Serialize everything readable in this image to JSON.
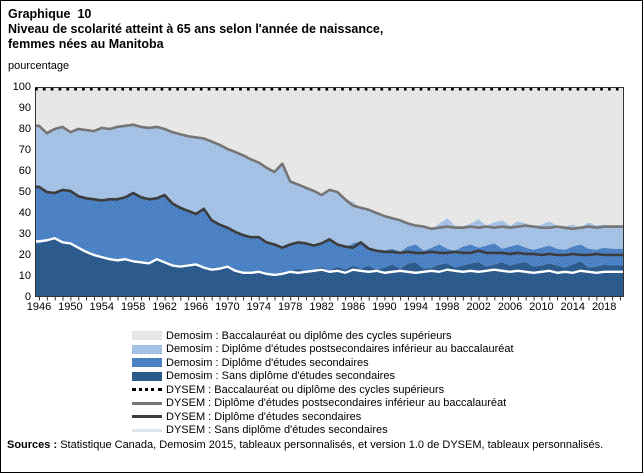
{
  "header": {
    "chart_number": "Graphique  10",
    "title_line_2": "Niveau de scolarité atteint à 65 ans selon l'année de naissance,",
    "title_line_3": "femmes nées au Manitoba",
    "unit_label": "pourcentage"
  },
  "colors": {
    "area_bacc": "#e9e9e8",
    "area_bacc_dot": "#d7d7d5",
    "area_postsec": "#a7c4e7",
    "area_postsec_dot": "#8fb1da",
    "area_sec": "#4e85c8",
    "area_sec_dot": "#3a6ca9",
    "area_sans": "#2e5d90",
    "area_sans_dot": "#224a77",
    "line_dysem_bacc": "#000000",
    "line_dysem_postsec": "#757575",
    "line_dysem_sec": "#3c3c3c",
    "line_dysem_sans": "#ffffff",
    "legend_sans_swatch": "#dfe7ee",
    "plot_border": "#333333"
  },
  "chart_data": {
    "type": "area",
    "stacked_percent": true,
    "title": "Niveau de scolarité atteint à 65 ans selon l'année de naissance, femmes nées au Manitoba",
    "ylabel": "pourcentage",
    "ylim": [
      0,
      100
    ],
    "y_ticks": [
      0,
      10,
      20,
      30,
      40,
      50,
      60,
      70,
      80,
      90,
      100
    ],
    "x_tick_label_years": [
      1946,
      1950,
      1954,
      1958,
      1962,
      1966,
      1970,
      1974,
      1978,
      1982,
      1986,
      1990,
      1994,
      1998,
      2002,
      2006,
      2010,
      2014,
      2018
    ],
    "years": [
      1946,
      1947,
      1948,
      1949,
      1950,
      1951,
      1952,
      1953,
      1954,
      1955,
      1956,
      1957,
      1958,
      1959,
      1960,
      1961,
      1962,
      1963,
      1964,
      1965,
      1966,
      1967,
      1968,
      1969,
      1970,
      1971,
      1972,
      1973,
      1974,
      1975,
      1976,
      1977,
      1978,
      1979,
      1980,
      1981,
      1982,
      1983,
      1984,
      1985,
      1986,
      1987,
      1988,
      1989,
      1990,
      1991,
      1992,
      1993,
      1994,
      1995,
      1996,
      1997,
      1998,
      1999,
      2000,
      2001,
      2002,
      2003,
      2004,
      2005,
      2006,
      2007,
      2008,
      2009,
      2010,
      2011,
      2012,
      2013,
      2014,
      2015,
      2016,
      2017,
      2018,
      2019,
      2020
    ],
    "note": "Values estimated from chart; all series are cumulative percentages (upper stack boundaries).",
    "demosim_areas_bottom_to_top": [
      {
        "name": "Demosim : Sans diplôme d'études secondaires",
        "cumulative": [
          25.5,
          26.5,
          27.5,
          25.5,
          25,
          23,
          21,
          19.5,
          18.5,
          17.5,
          17,
          17.5,
          16.5,
          16,
          15.5,
          17.5,
          16,
          14.5,
          14,
          14.5,
          15,
          13.5,
          12.5,
          13,
          14,
          12,
          11,
          11,
          11.5,
          10.5,
          10,
          10.5,
          12.5,
          13.5,
          12,
          13,
          14.5,
          12.5,
          14.5,
          13,
          15,
          13.5,
          15,
          13,
          14,
          15.5,
          13.5,
          16,
          16.5,
          13.5,
          14,
          15.5,
          16,
          14,
          15,
          16,
          16.5,
          14.5,
          15.5,
          16.5,
          15,
          16,
          16.5,
          14.5,
          15,
          16,
          15,
          14,
          15.5,
          17,
          14,
          14.5,
          15.5,
          15,
          15
        ]
      },
      {
        "name": "Demosim : Diplôme d'études secondaires",
        "cumulative": [
          52,
          49.5,
          49,
          50.5,
          50,
          47.5,
          46.5,
          46,
          45.5,
          46,
          46,
          47,
          49,
          47,
          46,
          46.5,
          48,
          44,
          42,
          40.5,
          39,
          41.5,
          36,
          34,
          32.5,
          30.5,
          29,
          28,
          28,
          25.5,
          24.5,
          23,
          24.5,
          25.5,
          25,
          24,
          25,
          27,
          24.5,
          23.5,
          25.5,
          26.5,
          23.5,
          22.5,
          22,
          23,
          21.5,
          24,
          25,
          22,
          23.5,
          25,
          23,
          22,
          24,
          25,
          23.5,
          24.5,
          25.5,
          23,
          24,
          25,
          23.5,
          22.5,
          23.5,
          24.5,
          23,
          22.5,
          24,
          25,
          23,
          22.5,
          23.5,
          23,
          23
        ]
      },
      {
        "name": "Demosim : Diplôme d'études postsecondaires inférieur au baccalauréat",
        "cumulative": [
          81,
          77.5,
          79.5,
          80.5,
          78,
          79.5,
          79,
          78.5,
          80,
          79.5,
          80.5,
          81,
          81.5,
          80.5,
          80,
          80.5,
          79.5,
          78,
          77,
          76,
          75.5,
          75,
          73.5,
          72,
          70,
          68.5,
          67,
          65,
          63.5,
          61,
          59,
          63,
          55.5,
          53,
          51.5,
          50,
          48,
          50.5,
          49.5,
          46,
          45.5,
          42,
          41,
          39.5,
          38,
          37,
          36,
          35.5,
          33.5,
          34,
          32,
          35,
          37.5,
          34,
          33.5,
          35,
          37,
          34,
          35.5,
          36.5,
          34,
          36,
          35,
          33.5,
          34.5,
          36,
          34,
          33.5,
          34.5,
          33,
          35.5,
          34,
          34.5,
          34,
          34
        ]
      },
      {
        "name": "Demosim : Baccalauréat ou diplôme des cycles supérieurs",
        "cumulative_top": 100
      }
    ],
    "dysem_lines": [
      {
        "name": "DYSEM : Sans diplôme d'études secondaires",
        "style": "solid-white",
        "cumulative": [
          26.5,
          27,
          28,
          26,
          25.5,
          23.5,
          21.5,
          20,
          19,
          18,
          17.5,
          18,
          17,
          16.5,
          16,
          18,
          16.5,
          15,
          14.5,
          15,
          15.5,
          14,
          13,
          13.5,
          14.5,
          12.5,
          11.5,
          11.5,
          12,
          11,
          10.5,
          11,
          12,
          11.5,
          12,
          12.5,
          13,
          12,
          12.5,
          11.5,
          13,
          12.5,
          12,
          12.5,
          11.5,
          12,
          12.5,
          12,
          11.5,
          12,
          12.5,
          12,
          13,
          12.5,
          12,
          12.5,
          12,
          12.5,
          13,
          12.5,
          12,
          12.5,
          12,
          11.5,
          12,
          12.5,
          11.5,
          12,
          11.5,
          12.5,
          12,
          11.5,
          12,
          12,
          12
        ]
      },
      {
        "name": "DYSEM : Diplôme d'études secondaires",
        "style": "solid-dark",
        "cumulative": [
          52.5,
          50,
          49.5,
          51,
          50.5,
          48,
          47,
          46.5,
          46,
          46.5,
          46.5,
          47.5,
          49.5,
          47.5,
          46.5,
          47,
          48.5,
          44.5,
          42.5,
          41,
          39.5,
          42,
          36.5,
          34.5,
          33,
          31,
          29.5,
          28.5,
          28.5,
          26,
          25,
          23.5,
          25,
          26,
          25.5,
          24.5,
          25.5,
          27.5,
          25,
          24,
          23.5,
          26,
          23,
          22,
          21.5,
          21.5,
          21,
          21.5,
          21,
          21,
          21.5,
          21,
          21,
          21.5,
          21,
          21,
          22,
          21,
          21,
          21,
          20.5,
          21,
          20.5,
          20.5,
          20,
          20.5,
          20,
          20,
          20.5,
          20,
          20,
          20.5,
          20,
          20,
          20
        ]
      },
      {
        "name": "DYSEM : Diplôme d'études postsecondaires inférieur au baccalauréat",
        "style": "solid-gray",
        "cumulative": [
          81.5,
          78,
          80,
          81,
          78.5,
          80,
          79.5,
          79,
          80.5,
          80,
          81,
          81.5,
          82,
          81,
          80.5,
          81,
          80,
          78.5,
          77.5,
          76.5,
          76,
          75.5,
          74,
          72.5,
          70.5,
          69,
          67.5,
          65.5,
          64,
          61.5,
          59.5,
          63.5,
          55,
          53.5,
          52,
          50.5,
          48.5,
          51,
          50,
          46.5,
          43.5,
          42.5,
          41.5,
          40,
          38.5,
          37.5,
          36.5,
          35,
          34,
          33.5,
          32.5,
          33,
          33.5,
          33,
          33,
          33.5,
          33,
          33.5,
          33,
          33.5,
          33,
          33.5,
          34,
          33.5,
          33,
          33,
          33.5,
          33,
          32.5,
          33,
          33.5,
          33,
          33.5,
          33.5,
          33.5
        ]
      },
      {
        "name": "DYSEM : Baccalauréat ou diplôme des cycles supérieurs",
        "style": "dotted-black",
        "cumulative_constant": 100
      }
    ]
  },
  "legend": {
    "items": [
      {
        "label": "Demosim : Baccalauréat ou diplôme des cycles supérieurs",
        "swatch": "area-bacc"
      },
      {
        "label": "Demosim : Diplôme d'études postsecondaires inférieur au baccalauréat",
        "swatch": "area-postsec"
      },
      {
        "label": "Demosim : Diplôme d'études secondaires",
        "swatch": "area-sec"
      },
      {
        "label": "Demosim : Sans diplôme d'études secondaires",
        "swatch": "area-sans"
      },
      {
        "label": "DYSEM : Baccalauréat ou diplôme des cycles supérieurs",
        "swatch": "dotted-black"
      },
      {
        "label": "DYSEM : Diplôme d'études postsecondaires inférieur au baccalauréat",
        "swatch": "line-gray"
      },
      {
        "label": "DYSEM : Diplôme d'études secondaires",
        "swatch": "line-dark"
      },
      {
        "label": "DYSEM : Sans diplôme d'études secondaires",
        "swatch": "line-white"
      }
    ]
  },
  "sources": {
    "label": "Sources :",
    "text": "Statistique Canada, Demosim 2015, tableaux personnalisés, et version 1.0 de DYSEM, tableaux personnalisés."
  }
}
